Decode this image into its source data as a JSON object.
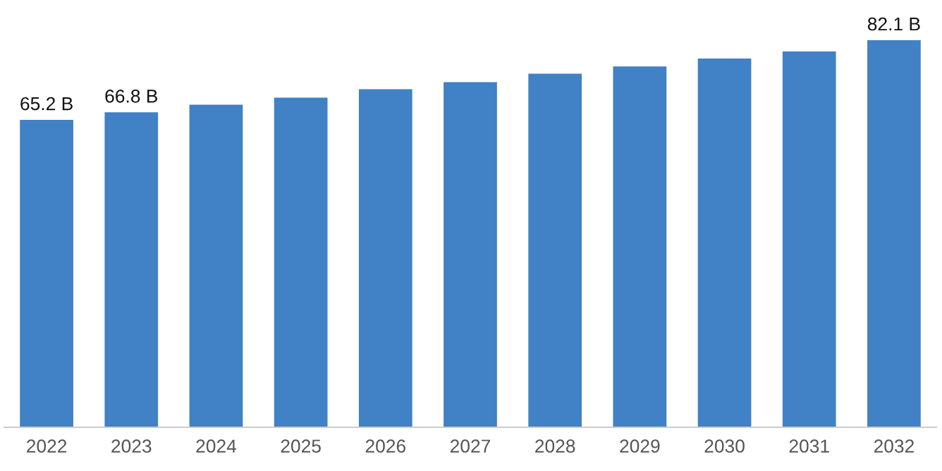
{
  "chart_data": {
    "type": "bar",
    "categories": [
      "2022",
      "2023",
      "2024",
      "2025",
      "2026",
      "2027",
      "2028",
      "2029",
      "2030",
      "2031",
      "2032"
    ],
    "values": [
      65.2,
      66.8,
      68.4,
      69.9,
      71.7,
      73.2,
      75.0,
      76.5,
      78.2,
      79.7,
      82.1
    ],
    "value_labels": [
      "65.2 B",
      "66.8 B",
      null,
      null,
      null,
      null,
      null,
      null,
      null,
      null,
      "82.1 B"
    ],
    "color": "#4181c5",
    "tick_labels": "x",
    "grid": false,
    "legend": false
  }
}
